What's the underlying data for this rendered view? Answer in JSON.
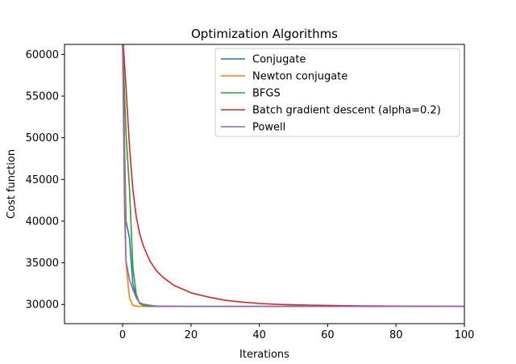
{
  "chart_data": {
    "type": "line",
    "title": "Optimization Algorithms",
    "xlabel": "Iterations",
    "ylabel": "Cost function",
    "xlim": [
      -17,
      100
    ],
    "ylim": [
      27700,
      61200
    ],
    "xticks": [
      0,
      20,
      40,
      60,
      80,
      100
    ],
    "yticks": [
      30000,
      35000,
      40000,
      45000,
      50000,
      55000,
      60000
    ],
    "grid": false,
    "legend_position": "top-right",
    "series": [
      {
        "name": "Conjugate",
        "color": "#1f77b4",
        "x": [
          0,
          1,
          2,
          3,
          4,
          5,
          6,
          8,
          10,
          15,
          20,
          30,
          50,
          100
        ],
        "y": [
          61200,
          40000,
          38000,
          32500,
          30800,
          30200,
          30000,
          29900,
          29800,
          29780,
          29770,
          29760,
          29760,
          29760
        ]
      },
      {
        "name": "Newton conjugate",
        "color": "#ff7f0e",
        "x": [
          0,
          1,
          2,
          3,
          4,
          5,
          6,
          8,
          10,
          15,
          20,
          50,
          100
        ],
        "y": [
          61200,
          35000,
          30800,
          29900,
          29800,
          29780,
          29770,
          29760,
          29760,
          29760,
          29760,
          29760,
          29760
        ]
      },
      {
        "name": "BFGS",
        "color": "#2ca02c",
        "x": [
          0,
          1,
          2,
          3,
          4,
          5,
          6,
          8,
          10,
          15,
          20,
          50,
          100
        ],
        "y": [
          61200,
          50500,
          44000,
          34500,
          31200,
          30100,
          29900,
          29800,
          29780,
          29770,
          29760,
          29760,
          29760
        ]
      },
      {
        "name": "Batch gradient descent (alpha=0.2)",
        "color": "#d62728",
        "x": [
          0.2,
          1,
          2,
          3,
          4,
          5,
          6,
          8,
          10,
          12,
          15,
          20,
          25,
          30,
          35,
          40,
          45,
          50,
          60,
          70,
          80,
          90,
          100
        ],
        "y": [
          61200,
          56000,
          49000,
          43800,
          40500,
          38500,
          37100,
          35200,
          34000,
          33200,
          32300,
          31400,
          30900,
          30500,
          30280,
          30120,
          30020,
          29960,
          29880,
          29830,
          29800,
          29780,
          29770
        ]
      },
      {
        "name": "Powell",
        "color": "#9467bd",
        "x": [
          0,
          0.6,
          1,
          2,
          3,
          4,
          5,
          6,
          8,
          10,
          15,
          20,
          50,
          100
        ],
        "y": [
          61200,
          40500,
          35200,
          33000,
          31800,
          30800,
          30200,
          30050,
          29900,
          29800,
          29780,
          29770,
          29760,
          29760
        ]
      }
    ]
  }
}
